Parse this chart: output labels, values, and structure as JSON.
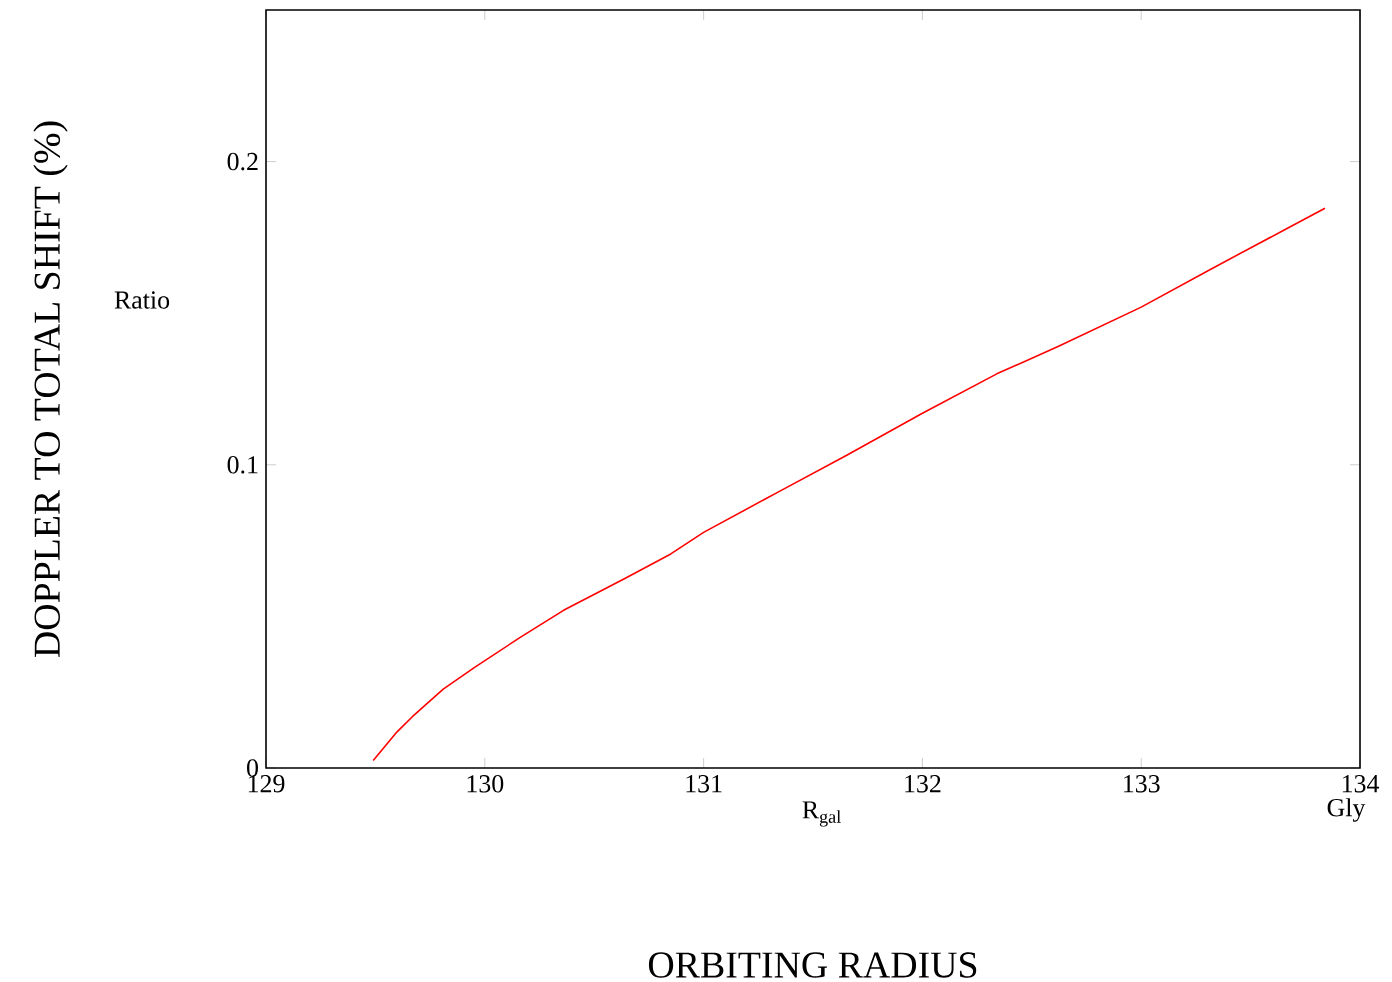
{
  "chart_data": {
    "type": "line",
    "xlabel": "ORBITING RADIUS",
    "ylabel": "DOPPLER TO TOTAL SHIFT (%)",
    "annotations": [
      "Ratio",
      "R$_{gal}$",
      "Gly"
    ],
    "x": [
      129.49,
      129.6,
      129.67,
      129.81,
      129.95,
      130.16,
      130.36,
      130.64,
      130.85,
      131.0,
      131.34,
      131.65,
      132.0,
      132.34,
      132.62,
      133.0,
      133.32,
      133.66,
      133.84
    ],
    "series": [
      {
        "color": "#ff0000",
        "values": [
          0.0025,
          0.012,
          0.017,
          0.026,
          0.033,
          0.043,
          0.052,
          0.0625,
          0.0706,
          0.0777,
          0.091,
          0.103,
          0.117,
          0.13,
          0.139,
          0.152,
          0.1646,
          0.1777,
          0.1846
        ]
      }
    ],
    "xlim": [
      129,
      134
    ],
    "ylim": [
      0,
      0.25
    ],
    "xticks": [
      129,
      130,
      131,
      132,
      133,
      134
    ],
    "yticks": [
      0,
      0.1,
      0.2
    ],
    "grid": false,
    "marker": "none",
    "line_style": "solid"
  }
}
